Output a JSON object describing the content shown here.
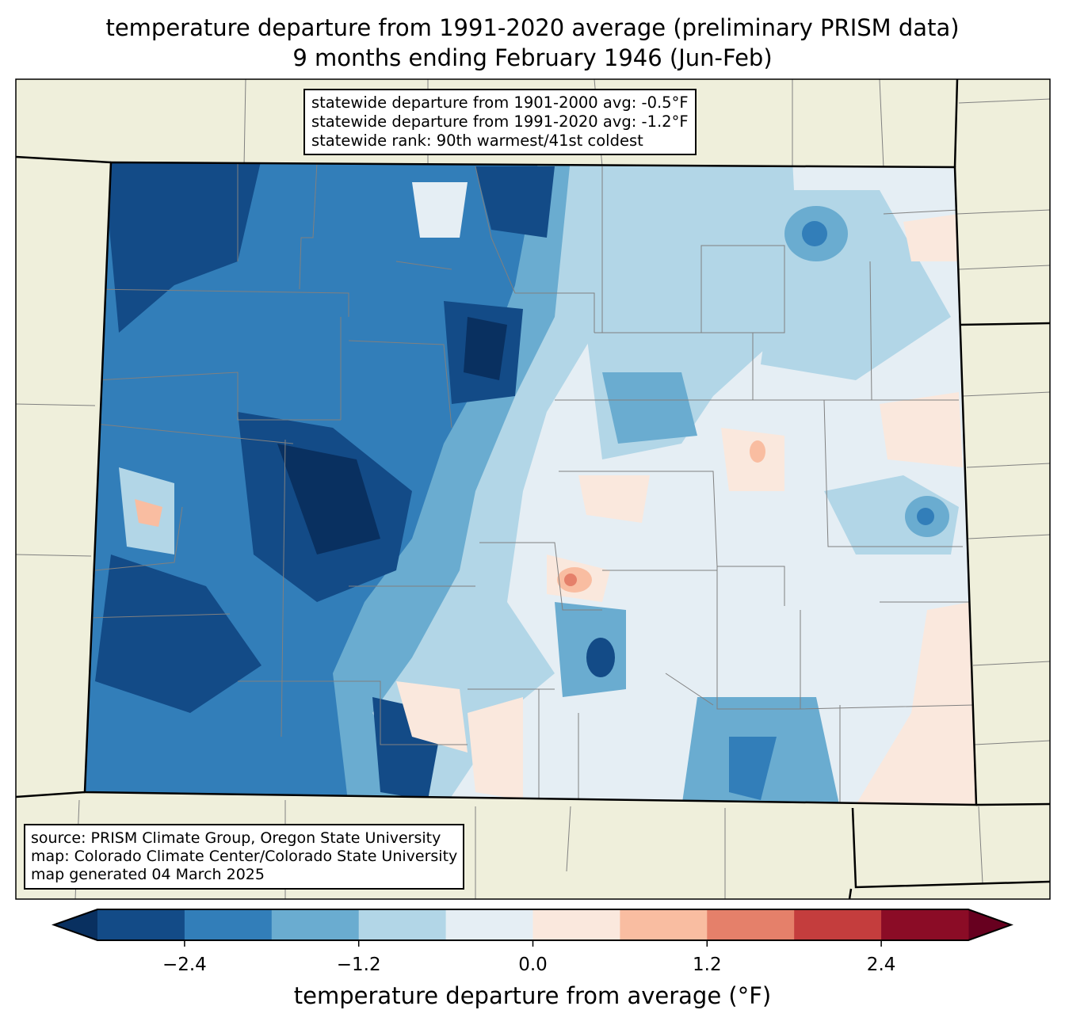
{
  "title": {
    "line1": "temperature departure from 1991-2020 average (preliminary PRISM data)",
    "line2": "9 months ending February 1946 (Jun-Feb)"
  },
  "stats_box": {
    "line1": "statewide departure from 1901-2000 avg: -0.5°F",
    "line2": "statewide departure from 1991-2020 avg: -1.2°F",
    "line3": "statewide rank: 90th warmest/41st coldest"
  },
  "source_box": {
    "line1": "source: PRISM Climate Group, Oregon State University",
    "line2": "map: Colorado Climate Center/Colorado State University",
    "line3": "map generated 04 March 2025"
  },
  "colorbar": {
    "label": "temperature departure from average (°F)",
    "bounds": [
      -3.0,
      -2.4,
      -1.8,
      -1.2,
      -0.6,
      0.0,
      0.6,
      1.2,
      1.8,
      2.4,
      3.0
    ],
    "colors": [
      "#134b87",
      "#327eb9",
      "#6aacd0",
      "#b2d6e7",
      "#e5eef4",
      "#fae8dd",
      "#f9bda1",
      "#e5806a",
      "#c43d3d",
      "#8b0c26"
    ],
    "under_color": "#093060",
    "over_color": "#67001f",
    "ticks": [
      "−2.4",
      "−1.2",
      "0.0",
      "1.2",
      "2.4"
    ]
  },
  "map": {
    "land_color": "#efefdb",
    "county_line_color": "#808080"
  }
}
